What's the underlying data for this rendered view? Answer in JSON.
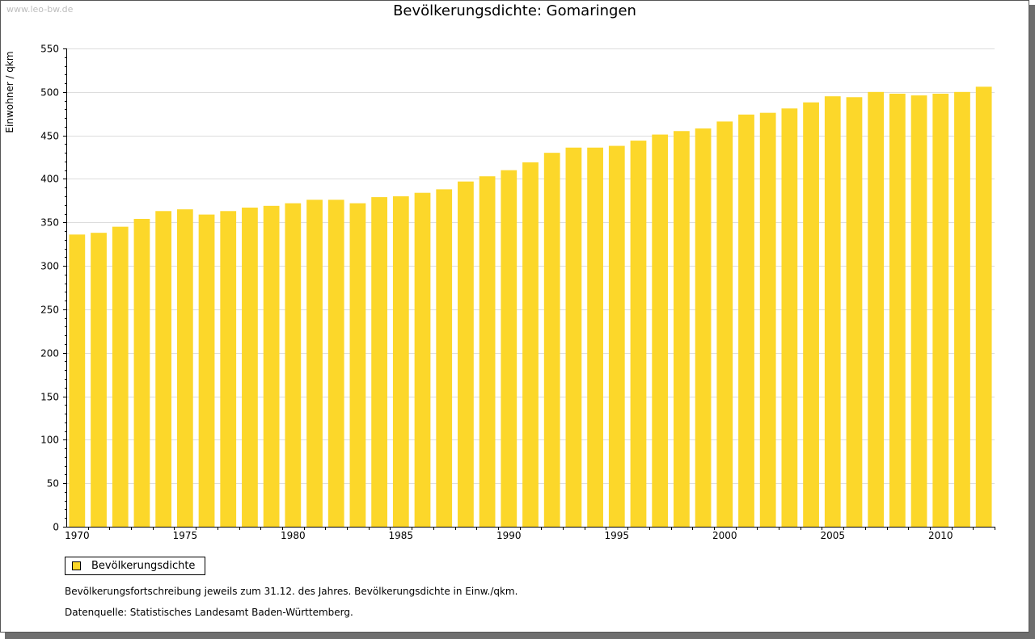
{
  "watermark": "www.leo-bw.de",
  "colors": {
    "bar": "#fcd72a",
    "grid": "#dddddd",
    "axis": "#000000"
  },
  "legend": {
    "label": "Bevölkerungsdichte"
  },
  "notes": [
    "Bevölkerungsfortschreibung jeweils zum 31.12. des Jahres. Bevölkerungsdichte in Einw./qkm.",
    "Datenquelle: Statistisches Landesamt Baden-Württemberg."
  ],
  "chart_data": {
    "type": "bar",
    "title": "Bevölkerungsdichte: Gomaringen",
    "xlabel": "",
    "ylabel": "Einwohner / qkm",
    "ylim": [
      0,
      550
    ],
    "yticks": [
      0,
      50,
      100,
      150,
      200,
      250,
      300,
      350,
      400,
      450,
      500,
      550
    ],
    "xtick_labels": [
      "1970",
      "1975",
      "1980",
      "1985",
      "1990",
      "1995",
      "2000",
      "2005",
      "2010"
    ],
    "grid": true,
    "series": [
      {
        "name": "Bevölkerungsdichte",
        "categories": [
          1970,
          1971,
          1972,
          1973,
          1974,
          1975,
          1976,
          1977,
          1978,
          1979,
          1980,
          1981,
          1982,
          1983,
          1984,
          1985,
          1986,
          1987,
          1988,
          1989,
          1990,
          1991,
          1992,
          1993,
          1994,
          1995,
          1996,
          1997,
          1998,
          1999,
          2000,
          2001,
          2002,
          2003,
          2004,
          2005,
          2006,
          2007,
          2008,
          2009,
          2010,
          2011,
          2012
        ],
        "values": [
          336,
          338,
          345,
          354,
          363,
          365,
          359,
          363,
          367,
          369,
          372,
          376,
          376,
          372,
          379,
          380,
          384,
          388,
          397,
          403,
          410,
          419,
          430,
          436,
          436,
          438,
          444,
          451,
          455,
          458,
          466,
          474,
          476,
          481,
          488,
          495,
          494,
          500,
          498,
          496,
          498,
          500,
          506
        ]
      }
    ]
  }
}
